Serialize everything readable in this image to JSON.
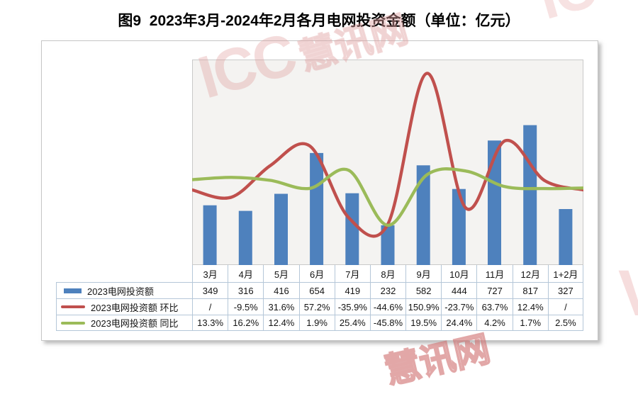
{
  "title": "图9  2023年3月-2024年2月各月电网投资金额（单位：亿元）",
  "watermark": {
    "icc": "ICC",
    "cjk": "慧讯网",
    "fragment_top_right": "ICC",
    "fragment_right_edge": "V",
    "fragment_bottom": "慧讯网",
    "color": "#E5B8B8"
  },
  "chart_data": {
    "type": "combo-bar-line",
    "title": "图9  2023年3月-2024年2月各月电网投资金额（单位：亿元）",
    "unit": "亿元",
    "categories": [
      "3月",
      "4月",
      "5月",
      "6月",
      "7月",
      "8月",
      "9月",
      "10月",
      "11月",
      "12月",
      "1+2月"
    ],
    "series": [
      {
        "name": "2023电网投资额",
        "type": "bar",
        "axis": "left",
        "color": "#4E81BD",
        "values": [
          349,
          316,
          416,
          654,
          419,
          232,
          582,
          444,
          727,
          817,
          327
        ],
        "table_values": [
          "349",
          "316",
          "416",
          "654",
          "419",
          "232",
          "582",
          "444",
          "727",
          "817",
          "327"
        ]
      },
      {
        "name": "2023电网投资额 环比",
        "type": "line",
        "axis": "right",
        "color": "#C0504D",
        "values": [
          null,
          -9.5,
          31.6,
          57.2,
          -35.9,
          -44.6,
          150.9,
          -23.7,
          63.7,
          12.4,
          null
        ],
        "plotted_values": [
          0,
          -9.5,
          31.6,
          57.2,
          -35.9,
          -44.6,
          150.9,
          -23.7,
          63.7,
          12.4,
          0
        ],
        "table_values": [
          "/",
          "-9.5%",
          "31.6%",
          "57.2%",
          "-35.9%",
          "-44.6%",
          "150.9%",
          "-23.7%",
          "63.7%",
          "12.4%",
          "/"
        ]
      },
      {
        "name": "2023电网投资额 同比",
        "type": "line",
        "axis": "right",
        "color": "#9BBB59",
        "values": [
          13.3,
          16.2,
          12.4,
          1.9,
          25.4,
          -45.8,
          19.5,
          24.4,
          4.2,
          1.7,
          2.5
        ],
        "plotted_values": [
          13.3,
          16.2,
          12.4,
          1.9,
          25.4,
          -45.8,
          19.5,
          24.4,
          4.2,
          1.7,
          2.5
        ],
        "table_values": [
          "13.3%",
          "16.2%",
          "12.4%",
          "1.9%",
          "25.4%",
          "-45.8%",
          "19.5%",
          "24.4%",
          "4.2%",
          "1.7%",
          "2.5%"
        ]
      }
    ],
    "left_axis": {
      "min": 0,
      "max": 1200,
      "labels_visible": false
    },
    "right_axis": {
      "unit": "%",
      "labels_visible": false
    },
    "grid": false,
    "smooth_lines": true,
    "legend_position": "data-table-left",
    "data_table_shown": true,
    "plot_background": "#F4F3F1",
    "table_border_color": "#B5C7D8"
  }
}
